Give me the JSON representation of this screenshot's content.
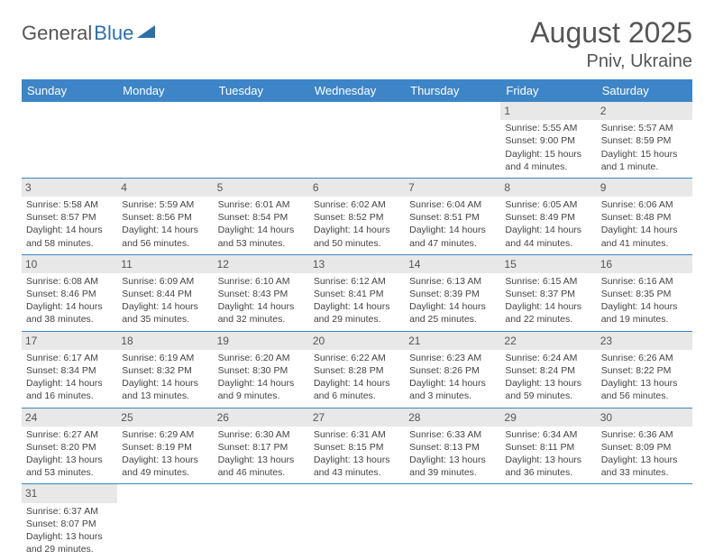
{
  "logo": {
    "general": "General",
    "blue": "Blue"
  },
  "header": {
    "title": "August 2025",
    "location": "Pniv, Ukraine"
  },
  "colors": {
    "header_bg": "#3d85c6",
    "header_text": "#ffffff",
    "daynum_bg": "#e8e8e8",
    "row_border": "#3d85c6",
    "title_text": "#555555",
    "body_text": "#444444"
  },
  "weekdays": [
    "Sunday",
    "Monday",
    "Tuesday",
    "Wednesday",
    "Thursday",
    "Friday",
    "Saturday"
  ],
  "weeks": [
    [
      null,
      null,
      null,
      null,
      null,
      {
        "n": "1",
        "sunrise": "Sunrise: 5:55 AM",
        "sunset": "Sunset: 9:00 PM",
        "day1": "Daylight: 15 hours",
        "day2": "and 4 minutes."
      },
      {
        "n": "2",
        "sunrise": "Sunrise: 5:57 AM",
        "sunset": "Sunset: 8:59 PM",
        "day1": "Daylight: 15 hours",
        "day2": "and 1 minute."
      }
    ],
    [
      {
        "n": "3",
        "sunrise": "Sunrise: 5:58 AM",
        "sunset": "Sunset: 8:57 PM",
        "day1": "Daylight: 14 hours",
        "day2": "and 58 minutes."
      },
      {
        "n": "4",
        "sunrise": "Sunrise: 5:59 AM",
        "sunset": "Sunset: 8:56 PM",
        "day1": "Daylight: 14 hours",
        "day2": "and 56 minutes."
      },
      {
        "n": "5",
        "sunrise": "Sunrise: 6:01 AM",
        "sunset": "Sunset: 8:54 PM",
        "day1": "Daylight: 14 hours",
        "day2": "and 53 minutes."
      },
      {
        "n": "6",
        "sunrise": "Sunrise: 6:02 AM",
        "sunset": "Sunset: 8:52 PM",
        "day1": "Daylight: 14 hours",
        "day2": "and 50 minutes."
      },
      {
        "n": "7",
        "sunrise": "Sunrise: 6:04 AM",
        "sunset": "Sunset: 8:51 PM",
        "day1": "Daylight: 14 hours",
        "day2": "and 47 minutes."
      },
      {
        "n": "8",
        "sunrise": "Sunrise: 6:05 AM",
        "sunset": "Sunset: 8:49 PM",
        "day1": "Daylight: 14 hours",
        "day2": "and 44 minutes."
      },
      {
        "n": "9",
        "sunrise": "Sunrise: 6:06 AM",
        "sunset": "Sunset: 8:48 PM",
        "day1": "Daylight: 14 hours",
        "day2": "and 41 minutes."
      }
    ],
    [
      {
        "n": "10",
        "sunrise": "Sunrise: 6:08 AM",
        "sunset": "Sunset: 8:46 PM",
        "day1": "Daylight: 14 hours",
        "day2": "and 38 minutes."
      },
      {
        "n": "11",
        "sunrise": "Sunrise: 6:09 AM",
        "sunset": "Sunset: 8:44 PM",
        "day1": "Daylight: 14 hours",
        "day2": "and 35 minutes."
      },
      {
        "n": "12",
        "sunrise": "Sunrise: 6:10 AM",
        "sunset": "Sunset: 8:43 PM",
        "day1": "Daylight: 14 hours",
        "day2": "and 32 minutes."
      },
      {
        "n": "13",
        "sunrise": "Sunrise: 6:12 AM",
        "sunset": "Sunset: 8:41 PM",
        "day1": "Daylight: 14 hours",
        "day2": "and 29 minutes."
      },
      {
        "n": "14",
        "sunrise": "Sunrise: 6:13 AM",
        "sunset": "Sunset: 8:39 PM",
        "day1": "Daylight: 14 hours",
        "day2": "and 25 minutes."
      },
      {
        "n": "15",
        "sunrise": "Sunrise: 6:15 AM",
        "sunset": "Sunset: 8:37 PM",
        "day1": "Daylight: 14 hours",
        "day2": "and 22 minutes."
      },
      {
        "n": "16",
        "sunrise": "Sunrise: 6:16 AM",
        "sunset": "Sunset: 8:35 PM",
        "day1": "Daylight: 14 hours",
        "day2": "and 19 minutes."
      }
    ],
    [
      {
        "n": "17",
        "sunrise": "Sunrise: 6:17 AM",
        "sunset": "Sunset: 8:34 PM",
        "day1": "Daylight: 14 hours",
        "day2": "and 16 minutes."
      },
      {
        "n": "18",
        "sunrise": "Sunrise: 6:19 AM",
        "sunset": "Sunset: 8:32 PM",
        "day1": "Daylight: 14 hours",
        "day2": "and 13 minutes."
      },
      {
        "n": "19",
        "sunrise": "Sunrise: 6:20 AM",
        "sunset": "Sunset: 8:30 PM",
        "day1": "Daylight: 14 hours",
        "day2": "and 9 minutes."
      },
      {
        "n": "20",
        "sunrise": "Sunrise: 6:22 AM",
        "sunset": "Sunset: 8:28 PM",
        "day1": "Daylight: 14 hours",
        "day2": "and 6 minutes."
      },
      {
        "n": "21",
        "sunrise": "Sunrise: 6:23 AM",
        "sunset": "Sunset: 8:26 PM",
        "day1": "Daylight: 14 hours",
        "day2": "and 3 minutes."
      },
      {
        "n": "22",
        "sunrise": "Sunrise: 6:24 AM",
        "sunset": "Sunset: 8:24 PM",
        "day1": "Daylight: 13 hours",
        "day2": "and 59 minutes."
      },
      {
        "n": "23",
        "sunrise": "Sunrise: 6:26 AM",
        "sunset": "Sunset: 8:22 PM",
        "day1": "Daylight: 13 hours",
        "day2": "and 56 minutes."
      }
    ],
    [
      {
        "n": "24",
        "sunrise": "Sunrise: 6:27 AM",
        "sunset": "Sunset: 8:20 PM",
        "day1": "Daylight: 13 hours",
        "day2": "and 53 minutes."
      },
      {
        "n": "25",
        "sunrise": "Sunrise: 6:29 AM",
        "sunset": "Sunset: 8:19 PM",
        "day1": "Daylight: 13 hours",
        "day2": "and 49 minutes."
      },
      {
        "n": "26",
        "sunrise": "Sunrise: 6:30 AM",
        "sunset": "Sunset: 8:17 PM",
        "day1": "Daylight: 13 hours",
        "day2": "and 46 minutes."
      },
      {
        "n": "27",
        "sunrise": "Sunrise: 6:31 AM",
        "sunset": "Sunset: 8:15 PM",
        "day1": "Daylight: 13 hours",
        "day2": "and 43 minutes."
      },
      {
        "n": "28",
        "sunrise": "Sunrise: 6:33 AM",
        "sunset": "Sunset: 8:13 PM",
        "day1": "Daylight: 13 hours",
        "day2": "and 39 minutes."
      },
      {
        "n": "29",
        "sunrise": "Sunrise: 6:34 AM",
        "sunset": "Sunset: 8:11 PM",
        "day1": "Daylight: 13 hours",
        "day2": "and 36 minutes."
      },
      {
        "n": "30",
        "sunrise": "Sunrise: 6:36 AM",
        "sunset": "Sunset: 8:09 PM",
        "day1": "Daylight: 13 hours",
        "day2": "and 33 minutes."
      }
    ],
    [
      {
        "n": "31",
        "sunrise": "Sunrise: 6:37 AM",
        "sunset": "Sunset: 8:07 PM",
        "day1": "Daylight: 13 hours",
        "day2": "and 29 minutes."
      },
      null,
      null,
      null,
      null,
      null,
      null
    ]
  ]
}
